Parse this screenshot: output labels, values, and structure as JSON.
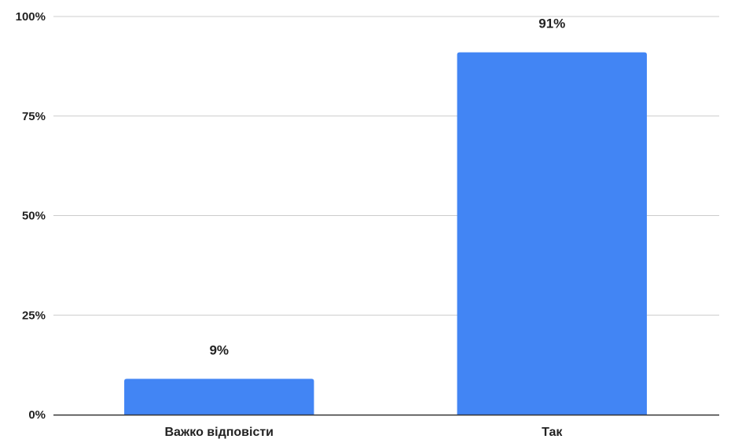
{
  "chart_data": {
    "type": "bar",
    "categories": [
      "Важко відповісти",
      "Так"
    ],
    "values": [
      9,
      91
    ],
    "data_labels": [
      "9%",
      "91%"
    ],
    "title": "",
    "xlabel": "",
    "ylabel": "",
    "ylim": [
      0,
      100
    ],
    "yticks": [
      0,
      25,
      50,
      75,
      100
    ],
    "ytick_labels": [
      "0%",
      "25%",
      "50%",
      "75%",
      "100%"
    ],
    "grid": true,
    "legend": "none",
    "colors": {
      "bar": "#4285f4",
      "grid": "#cccccc",
      "axis": "#333333",
      "text": "#222222"
    }
  }
}
